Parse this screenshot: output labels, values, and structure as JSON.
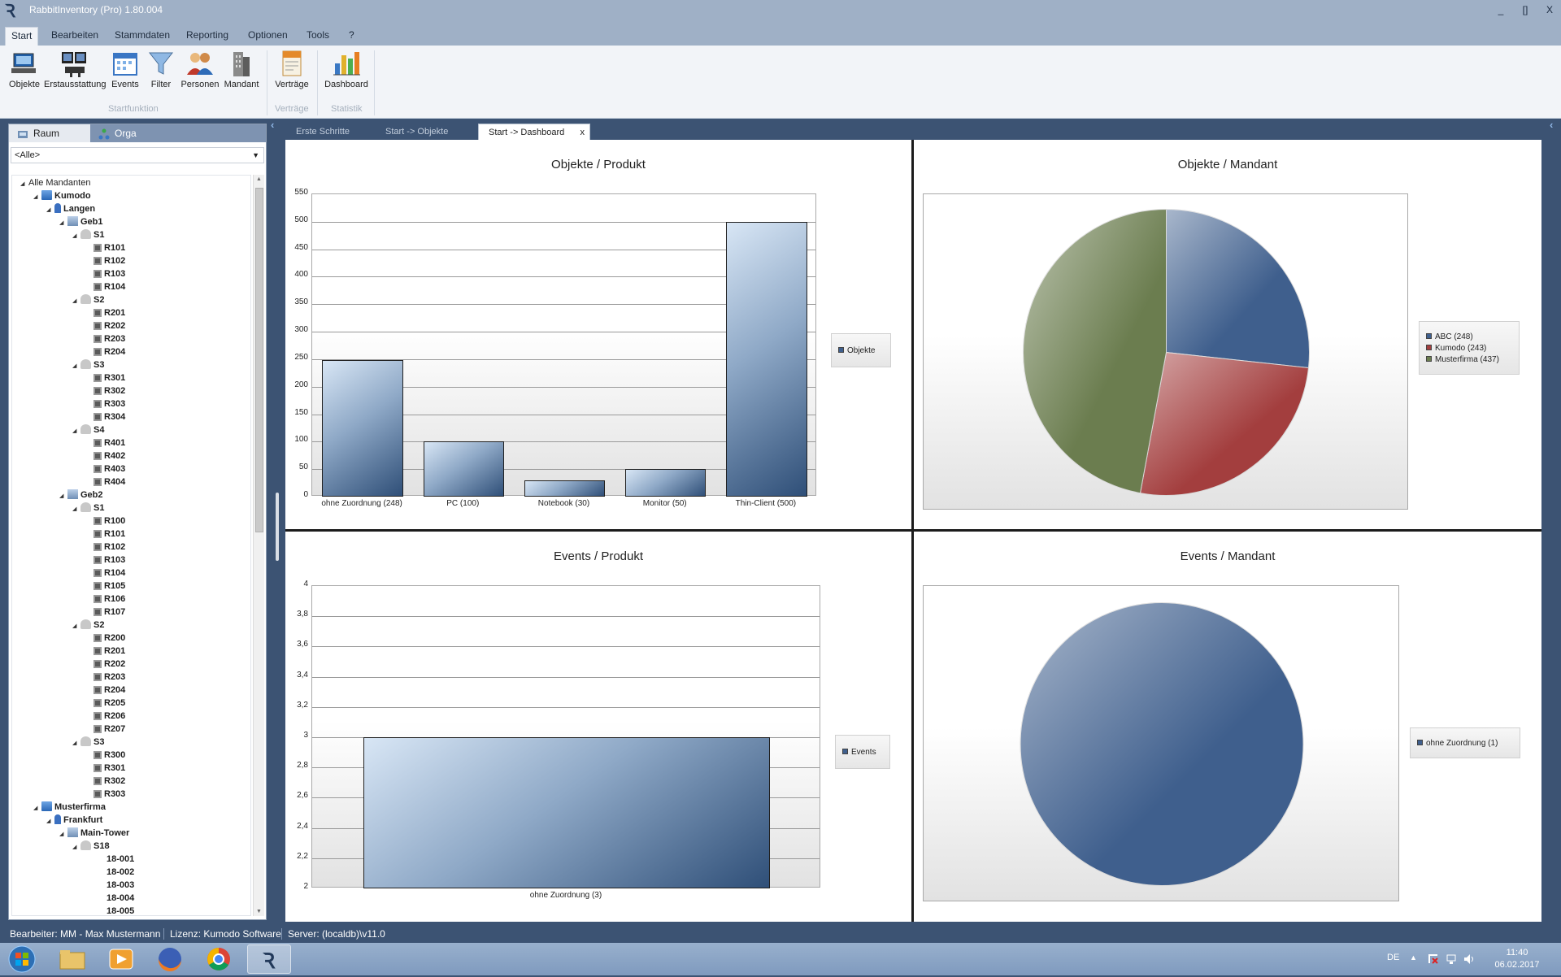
{
  "window": {
    "title": "RabbitInventory (Pro) 1.80.004",
    "minimize": "_",
    "maximize": "[]",
    "close": "X"
  },
  "menu": [
    "Start",
    "Bearbeiten",
    "Stammdaten",
    "Reporting",
    "Optionen",
    "Tools",
    "?"
  ],
  "ribbon": {
    "buttons": [
      "Objekte",
      "Erstausstattung",
      "Events",
      "Filter",
      "Personen",
      "Mandant",
      "Verträge",
      "Dashboard"
    ],
    "groups": [
      "Startfunktion",
      "Verträge",
      "Statistik"
    ]
  },
  "left_panel": {
    "tabs": [
      "Raum",
      "Orga"
    ],
    "filter_value": "<Alle>",
    "tree": [
      "Alle Mandanten",
      "Kumodo",
      "Langen",
      "Geb1",
      "S1",
      "R101",
      "R102",
      "R103",
      "R104",
      "S2",
      "R201",
      "R202",
      "R203",
      "R204",
      "S3",
      "R301",
      "R302",
      "R303",
      "R304",
      "S4",
      "R401",
      "R402",
      "R403",
      "R404",
      "Geb2",
      "S1",
      "R100",
      "R101",
      "R102",
      "R103",
      "R104",
      "R105",
      "R106",
      "R107",
      "S2",
      "R200",
      "R201",
      "R202",
      "R203",
      "R204",
      "R205",
      "R206",
      "R207",
      "S3",
      "R300",
      "R301",
      "R302",
      "R303",
      "Musterfirma",
      "Frankfurt",
      "Main-Tower",
      "S18",
      "18-001",
      "18-002",
      "18-003",
      "18-004",
      "18-005"
    ]
  },
  "doc_tabs": {
    "tabs": [
      "Erste Schritte",
      "Start -> Objekte",
      "Start -> Dashboard"
    ],
    "close": "x"
  },
  "chart_data": [
    {
      "type": "bar",
      "title": "Objekte / Produkt",
      "categories": [
        "ohne Zuordnung (248)",
        "PC (100)",
        "Notebook (30)",
        "Monitor (50)",
        "Thin-Client (500)"
      ],
      "series": [
        {
          "name": "Objekte",
          "values": [
            248,
            100,
            30,
            50,
            500
          ]
        }
      ],
      "ylim": [
        0,
        550
      ],
      "yticks": [
        "0",
        "50",
        "100",
        "150",
        "200",
        "250",
        "300",
        "350",
        "400",
        "450",
        "500",
        "550"
      ],
      "legend": "right"
    },
    {
      "type": "pie",
      "title": "Objekte / Mandant",
      "labels": [
        "ABC (248)",
        "Kumodo (243)",
        "Musterfirma (437)"
      ],
      "values": [
        248,
        243,
        437
      ],
      "colors": [
        "#3f5f8d",
        "#a33e3e",
        "#6b7d4f"
      ],
      "legend": "right"
    },
    {
      "type": "bar",
      "title": "Events / Produkt",
      "categories": [
        "ohne Zuordnung (3)"
      ],
      "series": [
        {
          "name": "Events",
          "values": [
            3
          ]
        }
      ],
      "ylim": [
        2,
        4
      ],
      "yticks": [
        "2",
        "2,2",
        "2,4",
        "2,6",
        "2,8",
        "3",
        "3,2",
        "3,4",
        "3,6",
        "3,8",
        "4"
      ],
      "legend": "right"
    },
    {
      "type": "pie",
      "title": "Events / Mandant",
      "labels": [
        "ohne Zuordnung (1)"
      ],
      "values": [
        1
      ],
      "colors": [
        "#3f5f8d"
      ],
      "legend": "right"
    }
  ],
  "status": {
    "user": "Bearbeiter: MM - Max Mustermann",
    "license": "Lizenz: Kumodo Software",
    "server": "Server: (localdb)\\v11.0"
  },
  "taskbar": {
    "apps": [
      "start-orb",
      "file-explorer",
      "media-player",
      "firefox",
      "chrome",
      "rabbitinventory"
    ],
    "language": "DE",
    "time": "11:40",
    "date": "06.02.2017"
  }
}
